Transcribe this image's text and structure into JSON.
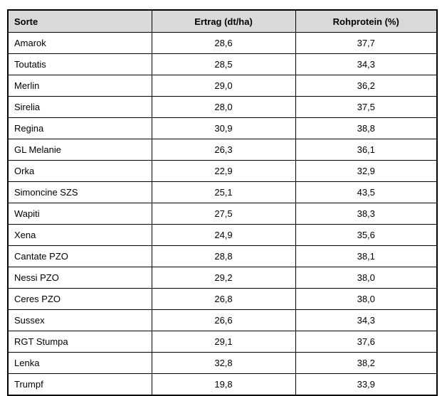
{
  "colors": {
    "header_bg": "#d9d9d9",
    "border": "#000000",
    "text": "#000000",
    "page_bg": "#ffffff"
  },
  "table": {
    "columns": [
      {
        "key": "sorte",
        "label": "Sorte"
      },
      {
        "key": "ertrag",
        "label": "Ertrag (dt/ha)"
      },
      {
        "key": "rohprotein",
        "label": "Rohprotein (%)"
      }
    ],
    "rows": [
      {
        "sorte": "Amarok",
        "ertrag": "28,6",
        "rohprotein": "37,7"
      },
      {
        "sorte": "Toutatis",
        "ertrag": "28,5",
        "rohprotein": "34,3"
      },
      {
        "sorte": "Merlin",
        "ertrag": "29,0",
        "rohprotein": "36,2"
      },
      {
        "sorte": "Sirelia",
        "ertrag": "28,0",
        "rohprotein": "37,5"
      },
      {
        "sorte": "Regina",
        "ertrag": "30,9",
        "rohprotein": "38,8"
      },
      {
        "sorte": "GL Melanie",
        "ertrag": "26,3",
        "rohprotein": "36,1"
      },
      {
        "sorte": "Orka",
        "ertrag": "22,9",
        "rohprotein": "32,9"
      },
      {
        "sorte": "Simoncine SZS",
        "ertrag": "25,1",
        "rohprotein": "43,5"
      },
      {
        "sorte": "Wapiti",
        "ertrag": "27,5",
        "rohprotein": "38,3"
      },
      {
        "sorte": "Xena",
        "ertrag": "24,9",
        "rohprotein": "35,6"
      },
      {
        "sorte": "Cantate PZO",
        "ertrag": "28,8",
        "rohprotein": "38,1"
      },
      {
        "sorte": "Nessi PZO",
        "ertrag": "29,2",
        "rohprotein": "38,0"
      },
      {
        "sorte": "Ceres PZO",
        "ertrag": "26,8",
        "rohprotein": "38,0"
      },
      {
        "sorte": "Sussex",
        "ertrag": "26,6",
        "rohprotein": "34,3"
      },
      {
        "sorte": "RGT Stumpa",
        "ertrag": "29,1",
        "rohprotein": "37,6"
      },
      {
        "sorte": "Lenka",
        "ertrag": "32,8",
        "rohprotein": "38,2"
      },
      {
        "sorte": "Trumpf",
        "ertrag": "19,8",
        "rohprotein": "33,9"
      }
    ]
  }
}
